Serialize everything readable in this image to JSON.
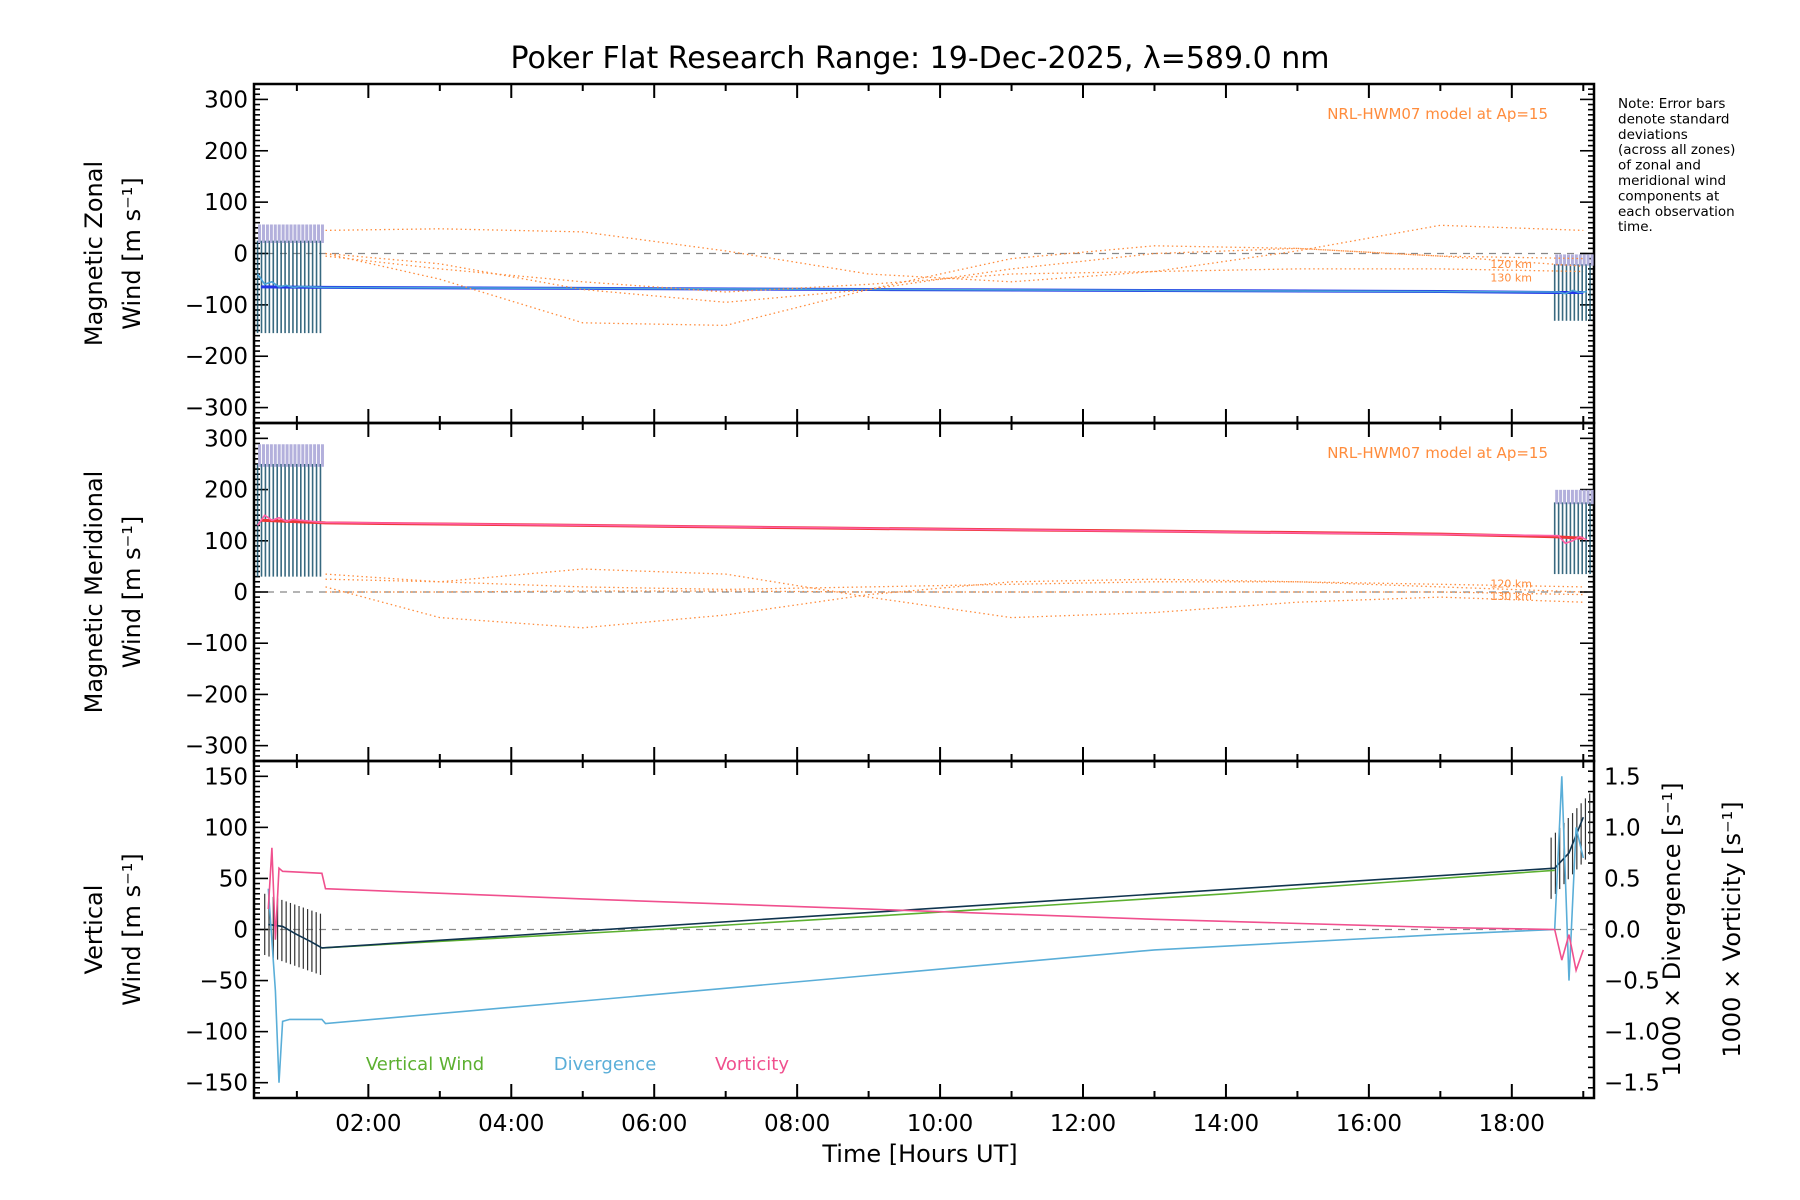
{
  "figure": {
    "title": "Poker Flat Research Range: 19-Dec-2025, λ=589.0 nm",
    "note_lines": [
      "Note: Error bars",
      "denote standard",
      "deviations",
      "(across all zones)",
      "of zonal and",
      "meridional wind",
      "components at",
      "each observation",
      "time."
    ],
    "model_label": "NRL-HWM07 model at Ap=15",
    "alt_labels": [
      "120 km",
      "130 km"
    ],
    "x_axis_label": "Time [Hours UT]"
  },
  "chart_data": [
    {
      "type": "line",
      "panel": "zonal",
      "ylabel_lines": [
        "Magnetic Zonal",
        "Wind [m s⁻¹]"
      ],
      "ylim": [
        -330,
        330
      ],
      "yticks": [
        -300,
        -200,
        -100,
        0,
        100,
        200,
        300
      ],
      "xlim": [
        0.4,
        19.15
      ],
      "xticks": [
        2,
        4,
        6,
        8,
        10,
        12,
        14,
        16,
        18
      ],
      "xticklabels": [
        "02:00",
        "04:00",
        "06:00",
        "08:00",
        "10:00",
        "12:00",
        "14:00",
        "16:00",
        "18:00"
      ],
      "zero_line": true,
      "series": [
        {
          "name": "Zonal wind (interpolated)",
          "color": "#2336e8",
          "x": [
            0.5,
            1.4,
            5.0,
            9.0,
            13.0,
            17.0,
            18.6,
            19.0
          ],
          "y": [
            -65,
            -66,
            -68,
            -70,
            -72,
            -74,
            -76,
            -76
          ]
        },
        {
          "name": "Zonal wind (observed)",
          "color": "#4aa3d8",
          "x": [
            0.45,
            0.55,
            0.65,
            0.75,
            0.85,
            0.95,
            1.05,
            1.2,
            1.35,
            18.65,
            18.75,
            18.85,
            18.95,
            19.05
          ],
          "y": [
            -40,
            -60,
            -55,
            -65,
            -62,
            -66,
            -64,
            -65,
            -66,
            -75,
            -78,
            -72,
            -76,
            -74
          ]
        },
        {
          "name": "HWM07 model 1",
          "color": "#ff8c3c",
          "x": [
            1.4,
            3.0,
            5.0,
            7.0,
            9.0,
            11.0,
            13.0,
            15.0,
            17.0,
            19.0
          ],
          "y": [
            45,
            48,
            42,
            5,
            -40,
            -55,
            -35,
            5,
            55,
            45
          ]
        },
        {
          "name": "HWM07 model 2",
          "color": "#ff8c3c",
          "x": [
            1.4,
            3.0,
            5.0,
            7.0,
            9.0,
            11.0,
            13.0,
            15.0,
            17.0,
            19.0
          ],
          "y": [
            0,
            -50,
            -135,
            -140,
            -70,
            -10,
            15,
            10,
            -5,
            -10
          ]
        },
        {
          "name": "HWM07 model 120 km",
          "color": "#ff8c3c",
          "x": [
            1.4,
            3.0,
            5.0,
            7.0,
            9.0,
            11.0,
            13.0,
            15.0,
            17.0,
            19.0
          ],
          "y": [
            0,
            -20,
            -70,
            -95,
            -70,
            -30,
            0,
            10,
            -5,
            -25
          ]
        },
        {
          "name": "HWM07 model 130 km",
          "color": "#ff8c3c",
          "x": [
            1.4,
            3.0,
            5.0,
            7.0,
            9.0,
            11.0,
            13.0,
            15.0,
            17.0,
            19.0
          ],
          "y": [
            -5,
            -30,
            -55,
            -75,
            -60,
            -40,
            -35,
            -30,
            -30,
            -35
          ]
        }
      ]
    },
    {
      "type": "line",
      "panel": "meridional",
      "ylabel_lines": [
        "Magnetic Meridional",
        "Wind [m s⁻¹]"
      ],
      "ylim": [
        -330,
        330
      ],
      "yticks": [
        -300,
        -200,
        -100,
        0,
        100,
        200,
        300
      ],
      "xlim": [
        0.4,
        19.15
      ],
      "zero_line": true,
      "series": [
        {
          "name": "Meridional wind (interpolated)",
          "color": "#ee3838",
          "x": [
            0.5,
            1.4,
            5.0,
            9.0,
            13.0,
            17.0,
            18.6,
            19.0
          ],
          "y": [
            140,
            135,
            130,
            124,
            119,
            113,
            108,
            105
          ]
        },
        {
          "name": "Meridional wind (observed)",
          "color": "#ff5fa6",
          "x": [
            0.45,
            0.55,
            0.65,
            0.75,
            0.85,
            0.95,
            1.05,
            1.2,
            1.35,
            18.65,
            18.75,
            18.85,
            18.95,
            19.05
          ],
          "y": [
            130,
            150,
            140,
            145,
            138,
            142,
            140,
            138,
            136,
            110,
            95,
            100,
            108,
            102
          ]
        },
        {
          "name": "HWM07 model 1",
          "color": "#ff8c3c",
          "x": [
            1.4,
            3.0,
            5.0,
            7.0,
            9.0,
            11.0,
            13.0,
            15.0,
            17.0,
            19.0
          ],
          "y": [
            25,
            20,
            45,
            35,
            -10,
            -50,
            -40,
            -20,
            -10,
            -20
          ]
        },
        {
          "name": "HWM07 model 2",
          "color": "#ff8c3c",
          "x": [
            1.4,
            3.0,
            5.0,
            7.0,
            9.0,
            11.0,
            13.0,
            15.0,
            17.0,
            19.0
          ],
          "y": [
            10,
            -50,
            -70,
            -45,
            -5,
            20,
            25,
            20,
            10,
            0
          ]
        },
        {
          "name": "HWM07 model 120 km",
          "color": "#ff8c3c",
          "x": [
            1.4,
            3.0,
            5.0,
            7.0,
            9.0,
            11.0,
            13.0,
            15.0,
            17.0,
            19.0
          ],
          "y": [
            35,
            20,
            10,
            5,
            10,
            15,
            20,
            20,
            15,
            10
          ]
        },
        {
          "name": "HWM07 model 130 km",
          "color": "#ff8c3c",
          "x": [
            1.4,
            3.0,
            5.0,
            7.0,
            9.0,
            11.0,
            13.0,
            15.0,
            17.0,
            19.0
          ],
          "y": [
            0,
            0,
            2,
            2,
            0,
            0,
            0,
            0,
            0,
            -5
          ]
        }
      ]
    },
    {
      "type": "line",
      "panel": "vertical",
      "ylabel_lines": [
        "Vertical",
        "Wind [m s⁻¹]"
      ],
      "right_ylabel_divergence": "1000 × Divergence [s⁻¹]",
      "right_ylabel_vorticity": "1000 × Vorticity [s⁻¹]",
      "ylim": [
        -165,
        165
      ],
      "yticks": [
        -150,
        -100,
        -50,
        0,
        50,
        100,
        150
      ],
      "y2lim": [
        -1.65,
        1.65
      ],
      "y2ticks": [
        -1.5,
        -1.0,
        -0.5,
        0.0,
        0.5,
        1.0,
        1.5
      ],
      "y2ticklabels": [
        "−1.5",
        "−1.0",
        "−0.5",
        "0.0",
        "0.5",
        "1.0",
        "1.5"
      ],
      "xlim": [
        0.4,
        19.15
      ],
      "zero_line": true,
      "legend": [
        "Vertical Wind",
        "Divergence",
        "Vorticity"
      ],
      "series": [
        {
          "name": "Vertical Wind",
          "color": "#5cb030",
          "axis": "left",
          "x": [
            1.35,
            6.0,
            10.0,
            14.0,
            18.6
          ],
          "y": [
            -18,
            0,
            17,
            35,
            58
          ]
        },
        {
          "name": "Vertical wind observed",
          "color": "#10344f",
          "axis": "left",
          "x": [
            0.6,
            0.8,
            1.0,
            1.2,
            1.35,
            18.6,
            18.8,
            19.0
          ],
          "y": [
            5,
            3,
            -5,
            -12,
            -18,
            60,
            75,
            110
          ]
        },
        {
          "name": "Divergence",
          "color": "#5aaed8",
          "axis": "right",
          "x": [
            0.6,
            0.7,
            0.75,
            0.8,
            0.9,
            1.35,
            1.4,
            5.0,
            9.0,
            13.0,
            17.0,
            18.6,
            18.7,
            18.8,
            18.9,
            19.0
          ],
          "y": [
            0.4,
            -0.6,
            -1.5,
            -0.9,
            -0.88,
            -0.88,
            -0.92,
            -0.7,
            -0.45,
            -0.2,
            -0.05,
            0.0,
            1.5,
            -0.5,
            1.0,
            0.7
          ]
        },
        {
          "name": "Vorticity",
          "color": "#f0508e",
          "axis": "right",
          "x": [
            0.6,
            0.65,
            0.7,
            0.75,
            0.8,
            1.35,
            1.4,
            5.0,
            9.0,
            13.0,
            17.0,
            18.6,
            18.7,
            18.8,
            18.9,
            19.0
          ],
          "y": [
            0.2,
            0.8,
            -0.1,
            0.6,
            0.57,
            0.55,
            0.4,
            0.3,
            0.2,
            0.1,
            0.02,
            0.0,
            -0.3,
            -0.05,
            -0.4,
            -0.2
          ]
        }
      ]
    }
  ]
}
